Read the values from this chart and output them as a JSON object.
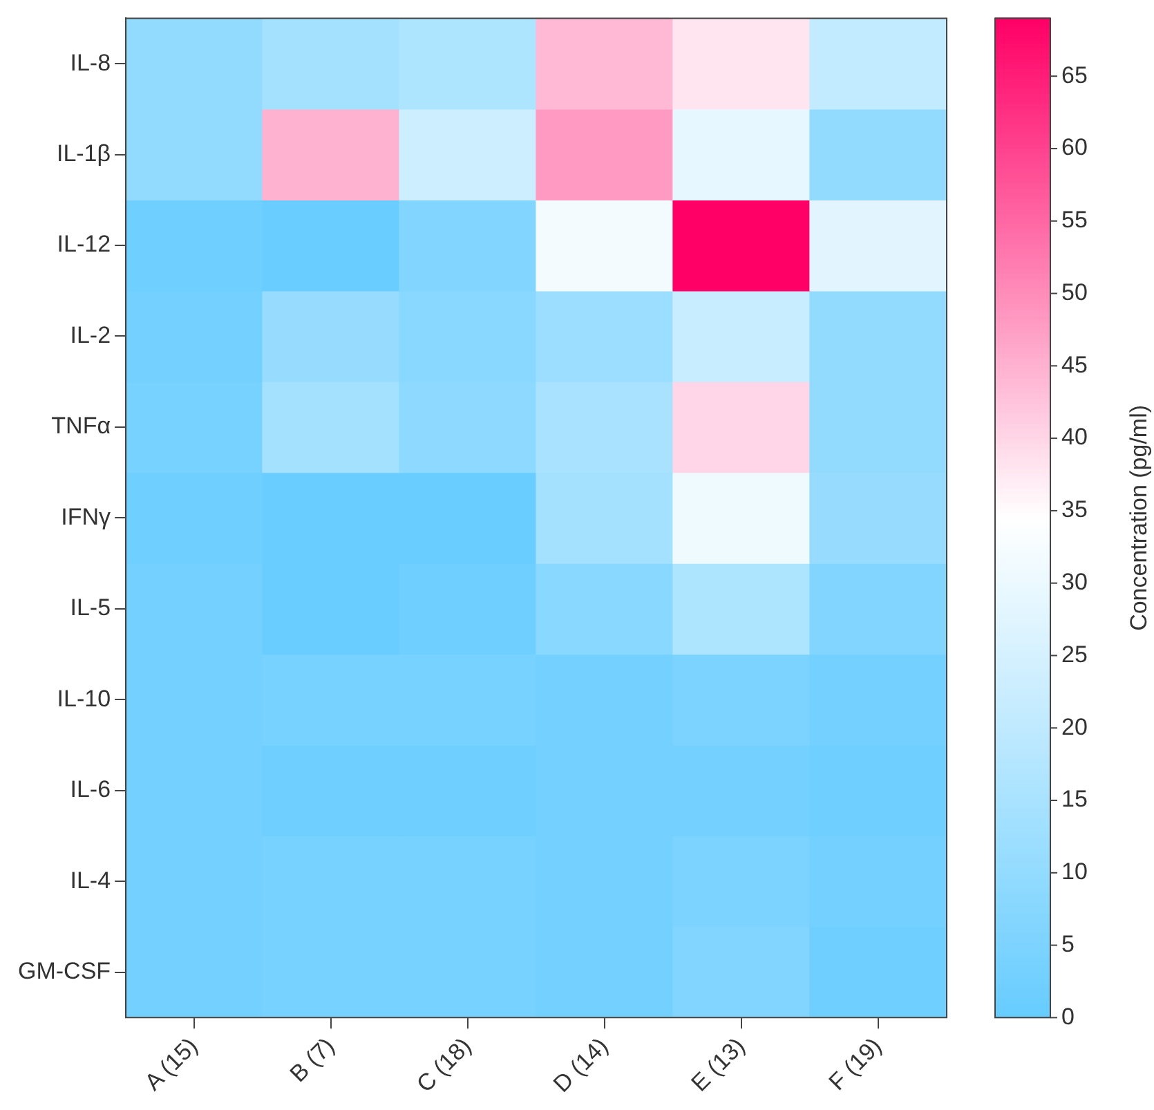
{
  "chart_data": {
    "type": "heatmap",
    "categories": [
      "A (15)",
      "B (7)",
      "C (18)",
      "D (14)",
      "E (13)",
      "F (19)"
    ],
    "y_categories": [
      "IL-8",
      "IL-1β",
      "IL-12",
      "IL-2",
      "TNFα",
      "IFNγ",
      "IL-5",
      "IL-10",
      "IL-6",
      "IL-4",
      "GM-CSF"
    ],
    "cells": [
      [
        10,
        14,
        16,
        44,
        38,
        21
      ],
      [
        10,
        45,
        23,
        48,
        29,
        10
      ],
      [
        2,
        1,
        6,
        32,
        69,
        28
      ],
      [
        3,
        11,
        8,
        12,
        22,
        10
      ],
      [
        4,
        14,
        9,
        15,
        40,
        10
      ],
      [
        2,
        1,
        1,
        14,
        31,
        11
      ],
      [
        3,
        1,
        2,
        8,
        16,
        6
      ],
      [
        3,
        4,
        4,
        3,
        5,
        3
      ],
      [
        3,
        2,
        2,
        3,
        3,
        2
      ],
      [
        3,
        4,
        4,
        3,
        5,
        3
      ],
      [
        3,
        4,
        4,
        3,
        6,
        2
      ]
    ],
    "clim": [
      0,
      69
    ],
    "cticks": [
      0,
      5,
      10,
      15,
      20,
      25,
      30,
      35,
      40,
      45,
      50,
      55,
      60,
      65
    ],
    "clabel": "Concentration (pg/ml)"
  }
}
